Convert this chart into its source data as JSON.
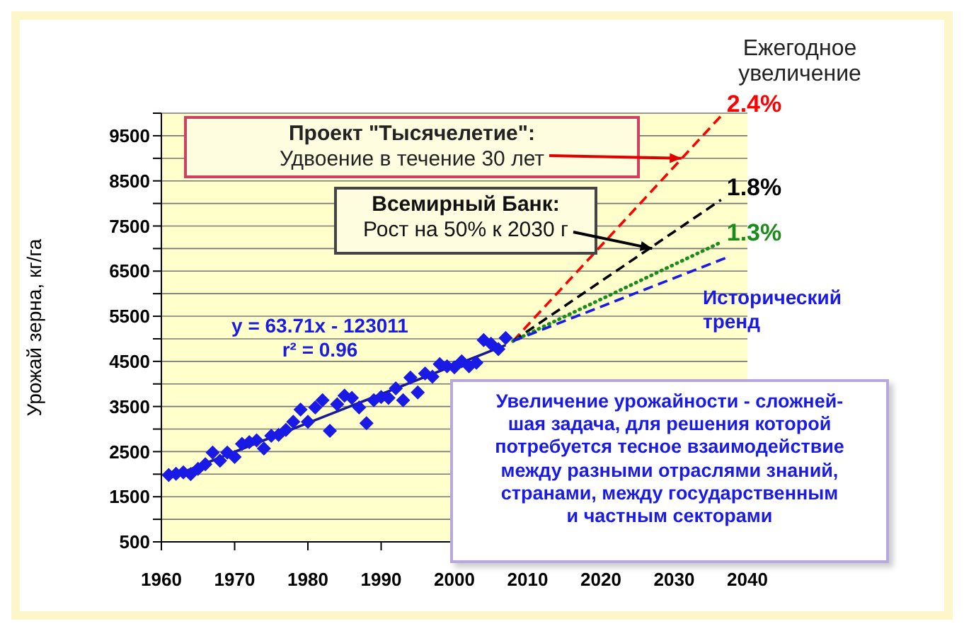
{
  "chart_data": {
    "type": "scatter",
    "legend_title": "Ежегодное увеличение",
    "ylabel": "Урожай зерна, кг/га",
    "xlim": [
      1960,
      2040
    ],
    "xticks": [
      1960,
      1970,
      1980,
      1990,
      2000,
      2010,
      2020,
      2030,
      2040
    ],
    "ylim": [
      500,
      10000
    ],
    "yticks": [
      500,
      {
        "value": 1000,
        "label": null
      },
      1500,
      {
        "value": 2000,
        "label": null
      },
      2500,
      {
        "value": 3000,
        "label": null
      },
      3500,
      {
        "value": 4000,
        "label": null
      },
      4500,
      {
        "value": 5000,
        "label": null
      },
      5500,
      {
        "value": 6000,
        "label": null
      },
      6500,
      {
        "value": 7000,
        "label": null
      },
      7500,
      {
        "value": 8000,
        "label": null
      },
      8500,
      {
        "value": 9000,
        "label": null
      },
      9500,
      {
        "value": 10000,
        "label": null
      }
    ],
    "grid": "y",
    "marker": "diamond",
    "series": [
      {
        "color": "#1a1ae6",
        "x": [
          1961,
          1962,
          1963,
          1964,
          1965,
          1966,
          1967,
          1968,
          1969,
          1970,
          1971,
          1972,
          1973,
          1974,
          1975,
          1976,
          1977,
          1978,
          1979,
          1980,
          1981,
          1982,
          1983,
          1984,
          1985,
          1986,
          1987,
          1988,
          1989,
          1990,
          1991,
          1992,
          1993,
          1994,
          1995,
          1996,
          1997,
          1998,
          1999,
          2000,
          2001,
          2002,
          2003,
          2004,
          2005,
          2006,
          2007
        ],
        "values": [
          1980,
          2010,
          2040,
          2000,
          2120,
          2220,
          2480,
          2300,
          2480,
          2380,
          2670,
          2710,
          2750,
          2570,
          2850,
          2870,
          2980,
          3160,
          3430,
          3160,
          3480,
          3640,
          2960,
          3550,
          3740,
          3690,
          3480,
          3130,
          3640,
          3710,
          3690,
          3900,
          3640,
          4140,
          3810,
          4230,
          4160,
          4440,
          4390,
          4370,
          4500,
          4390,
          4470,
          4970,
          4890,
          4770,
          5020
        ]
      },
      {
        "type": "line",
        "color": "#1a1a99",
        "line_style": "solid",
        "marker": "none",
        "x": [
          1961,
          2007
        ],
        "values": [
          1920,
          4860
        ]
      },
      {
        "type": "line",
        "name": "2.4%",
        "color": "#ff0000",
        "line_style": "dashed",
        "marker": "none",
        "x": [
          2008,
          2036.4
        ],
        "values": [
          4950,
          9940
        ]
      },
      {
        "type": "line",
        "name": "1.8%",
        "color": "#000000",
        "line_style": "dashed",
        "marker": "none",
        "x": [
          2008,
          2036.4
        ],
        "values": [
          4950,
          8080
        ]
      },
      {
        "type": "line",
        "name": "1.3%",
        "color": "#1a8c1a",
        "line_style": "dotted",
        "marker": "none",
        "x": [
          2008,
          2036.4
        ],
        "values": [
          4950,
          7140
        ]
      },
      {
        "type": "line",
        "name": "Исторический тренд",
        "color": "#1a1ae6",
        "line_style": "dashed",
        "marker": "none",
        "x": [
          2008,
          2037
        ],
        "values": [
          4950,
          6790
        ]
      }
    ],
    "annotations": [
      {
        "text": "Проект \"Тысячелетие\":\nУдвоение в течение 30 лет",
        "x": 2031,
        "y": 9000
      },
      {
        "text": "Всемирный Банк:\nРост на 50% к 2030 г",
        "x": 2027,
        "y": 7000
      },
      "y = 63.71x - 123011\nr² = 0.96",
      "Увеличение урожайности - сложней-\nшая задача, для решения которой\nпотребуется тесное взаимодействие\nмежду разными отраслями знаний,\nстранами, между государственным\nи частным секторами"
    ]
  }
}
